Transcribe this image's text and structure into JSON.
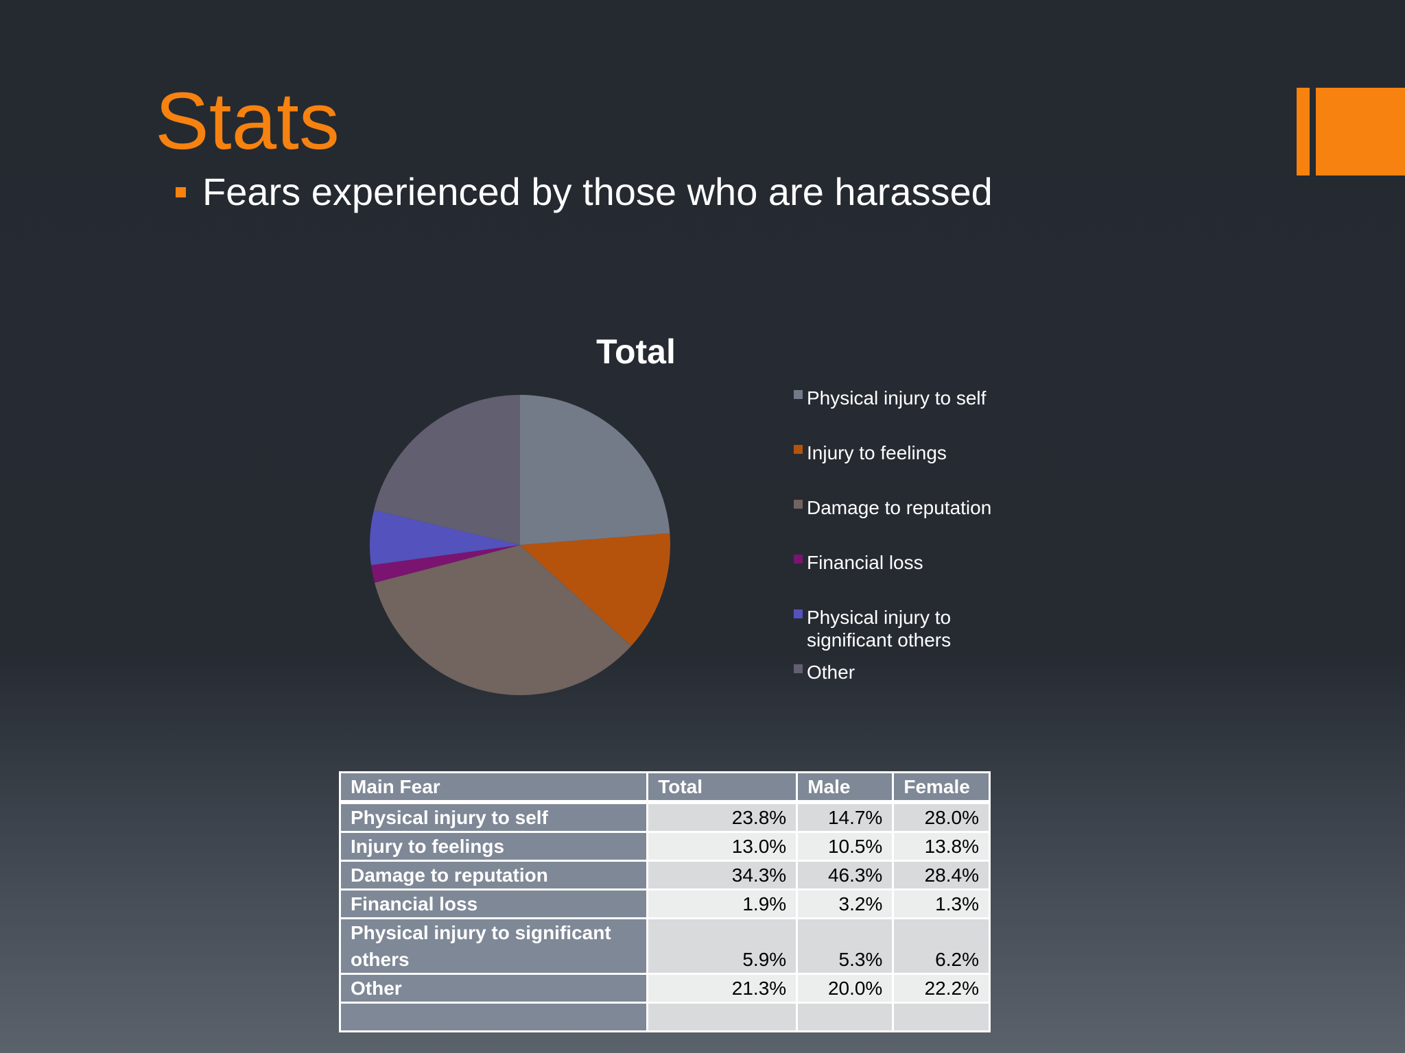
{
  "slide": {
    "title": "Stats",
    "bullet": "Fears experienced by those who are harassed"
  },
  "colors": {
    "accent": "#f7820f",
    "background": "#262b32"
  },
  "chart_data": {
    "type": "pie",
    "title": "Total",
    "legend_position": "right",
    "categories": [
      "Physical injury to self",
      "Injury to feelings",
      "Damage to reputation",
      "Financial loss",
      "Physical injury to significant others",
      "Other"
    ],
    "legend_lines": [
      [
        "Physical injury to self"
      ],
      [
        "Injury to feelings"
      ],
      [
        "Damage to reputation"
      ],
      [
        "Financial loss"
      ],
      [
        "Physical injury to",
        "significant others"
      ],
      [
        "Other"
      ]
    ],
    "values": [
      23.8,
      13.0,
      34.3,
      1.9,
      5.9,
      21.3
    ],
    "colors": [
      "#737b89",
      "#b5530d",
      "#72645f",
      "#7a1470",
      "#5452bd",
      "#625f70"
    ]
  },
  "table": {
    "headers": [
      "Main Fear",
      "Total",
      "Male",
      "Female"
    ],
    "rows": [
      {
        "fear": "Physical injury to self",
        "total": "23.8%",
        "male": "14.7%",
        "female": "28.0%"
      },
      {
        "fear": "Injury to feelings",
        "total": "13.0%",
        "male": "10.5%",
        "female": "13.8%"
      },
      {
        "fear": "Damage to reputation",
        "total": "34.3%",
        "male": "46.3%",
        "female": "28.4%"
      },
      {
        "fear": "Financial loss",
        "total": "1.9%",
        "male": "3.2%",
        "female": "1.3%"
      },
      {
        "fear_line1": "Physical injury to significant",
        "fear_line2": "others",
        "total": "5.9%",
        "male": "5.3%",
        "female": "6.2%"
      },
      {
        "fear": "Other",
        "total": "21.3%",
        "male": "20.0%",
        "female": "22.2%"
      }
    ]
  }
}
